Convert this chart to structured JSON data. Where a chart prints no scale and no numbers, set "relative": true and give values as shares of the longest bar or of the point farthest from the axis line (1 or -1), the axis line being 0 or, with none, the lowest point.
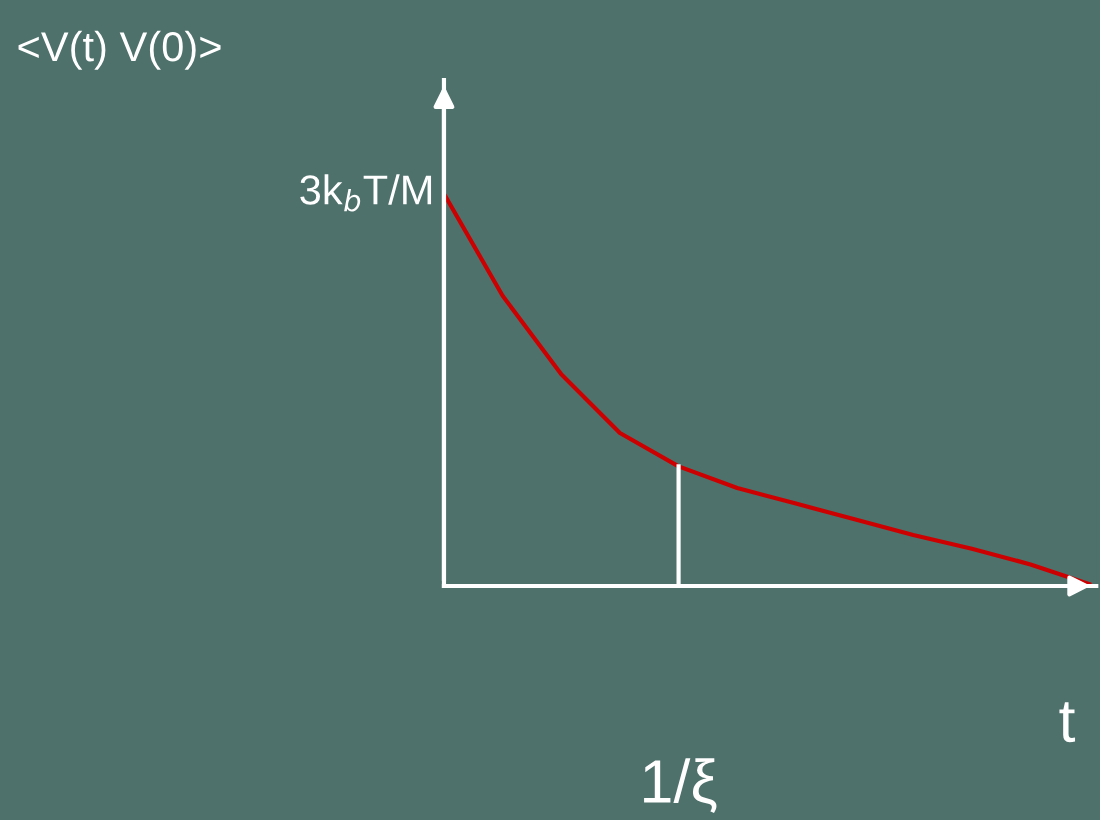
{
  "chart_data": {
    "type": "line",
    "relative": true,
    "xlabel": "t",
    "categories": [
      null,
      null,
      null,
      null,
      null,
      null,
      null,
      null,
      null,
      null,
      null,
      null
    ],
    "series": [
      {
        "color": "#cc0000",
        "values": [
          1,
          0.74,
          0.54,
          0.39,
          0.305,
          0.25,
          0.21,
          0.17,
          0.13,
          0.095,
          0.055,
          0.005
        ]
      }
    ],
    "annotations": [
      "<V(t) V(0)>",
      "3k$_{b}$T/M",
      "1/ξ"
    ],
    "marker": "none",
    "line_style": "solid"
  }
}
